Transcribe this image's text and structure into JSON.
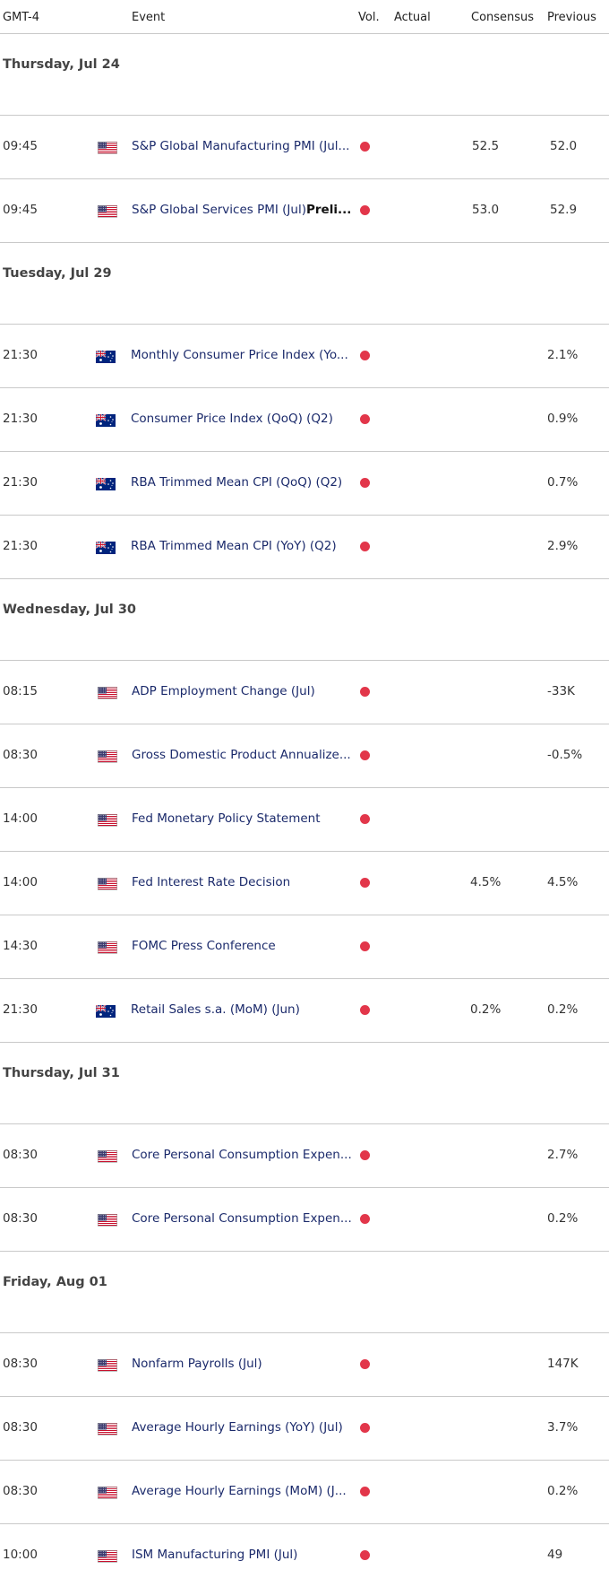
{
  "header": {
    "timezone": "GMT-4",
    "event": "Event",
    "vol": "Vol.",
    "actual": "Actual",
    "consensus": "Consensus",
    "previous": "Previous"
  },
  "colors": {
    "volatility_dot": "#e2364a",
    "event_text": "#1b2a6b",
    "separator": "#c9c9c9"
  },
  "days": [
    {
      "label": "Thursday, Jul 24",
      "events": [
        {
          "time": "09:45",
          "flag": "us-flag-icon",
          "event": "S&P Global Manufacturing PMI (Jul...",
          "event_bold": "",
          "consensus": "52.5",
          "previous": "52.0"
        },
        {
          "time": "09:45",
          "flag": "us-flag-icon",
          "event": "S&P Global Services PMI (Jul)",
          "event_bold": "Preli...",
          "consensus": "53.0",
          "previous": "52.9"
        }
      ]
    },
    {
      "label": "Tuesday, Jul 29",
      "events": [
        {
          "time": "21:30",
          "flag": "au-flag-icon",
          "event": "Monthly Consumer Price Index (Yo...",
          "event_bold": "",
          "consensus": "",
          "previous": "2.1%"
        },
        {
          "time": "21:30",
          "flag": "au-flag-icon",
          "event": "Consumer Price Index (QoQ) (Q2)",
          "event_bold": "",
          "consensus": "",
          "previous": "0.9%"
        },
        {
          "time": "21:30",
          "flag": "au-flag-icon",
          "event": "RBA Trimmed Mean CPI (QoQ) (Q2)",
          "event_bold": "",
          "consensus": "",
          "previous": "0.7%"
        },
        {
          "time": "21:30",
          "flag": "au-flag-icon",
          "event": "RBA Trimmed Mean CPI (YoY) (Q2)",
          "event_bold": "",
          "consensus": "",
          "previous": "2.9%"
        }
      ]
    },
    {
      "label": "Wednesday, Jul 30",
      "events": [
        {
          "time": "08:15",
          "flag": "us-flag-icon",
          "event": "ADP Employment Change (Jul)",
          "event_bold": "",
          "consensus": "",
          "previous": "-33K"
        },
        {
          "time": "08:30",
          "flag": "us-flag-icon",
          "event": "Gross Domestic Product Annualize...",
          "event_bold": "",
          "consensus": "",
          "previous": "-0.5%"
        },
        {
          "time": "14:00",
          "flag": "us-flag-icon",
          "event": "Fed Monetary Policy Statement",
          "event_bold": "",
          "consensus": "",
          "previous": ""
        },
        {
          "time": "14:00",
          "flag": "us-flag-icon",
          "event": "Fed Interest Rate Decision",
          "event_bold": "",
          "consensus": "4.5%",
          "previous": "4.5%"
        },
        {
          "time": "14:30",
          "flag": "us-flag-icon",
          "event": "FOMC Press Conference",
          "event_bold": "",
          "consensus": "",
          "previous": ""
        },
        {
          "time": "21:30",
          "flag": "au-flag-icon",
          "event": "Retail Sales s.a. (MoM) (Jun)",
          "event_bold": "",
          "consensus": "0.2%",
          "previous": "0.2%"
        }
      ]
    },
    {
      "label": "Thursday, Jul 31",
      "events": [
        {
          "time": "08:30",
          "flag": "us-flag-icon",
          "event": "Core Personal Consumption Expen...",
          "event_bold": "",
          "consensus": "",
          "previous": "2.7%"
        },
        {
          "time": "08:30",
          "flag": "us-flag-icon",
          "event": "Core Personal Consumption Expen...",
          "event_bold": "",
          "consensus": "",
          "previous": "0.2%"
        }
      ]
    },
    {
      "label": "Friday, Aug 01",
      "events": [
        {
          "time": "08:30",
          "flag": "us-flag-icon",
          "event": "Nonfarm Payrolls (Jul)",
          "event_bold": "",
          "consensus": "",
          "previous": "147K"
        },
        {
          "time": "08:30",
          "flag": "us-flag-icon",
          "event": "Average Hourly Earnings (YoY) (Jul)",
          "event_bold": "",
          "consensus": "",
          "previous": "3.7%"
        },
        {
          "time": "08:30",
          "flag": "us-flag-icon",
          "event": "Average Hourly Earnings (MoM) (J...",
          "event_bold": "",
          "consensus": "",
          "previous": "0.2%"
        },
        {
          "time": "10:00",
          "flag": "us-flag-icon",
          "event": "ISM Manufacturing PMI (Jul)",
          "event_bold": "",
          "consensus": "",
          "previous": "49"
        }
      ]
    }
  ]
}
